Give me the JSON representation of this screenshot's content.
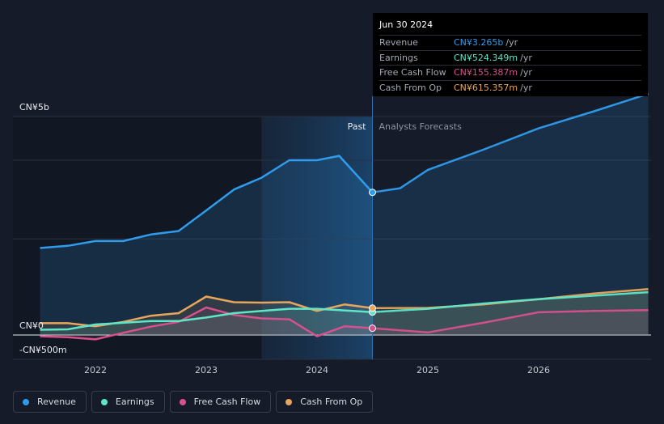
{
  "chart_data": {
    "type": "area",
    "ylabel_top": "CN¥5b",
    "ylabel_zero": "CN¥0",
    "ylabel_bottom": "-CN¥500m",
    "x_ticks": [
      "2022",
      "2023",
      "2024",
      "2025",
      "2026"
    ],
    "past_label": "Past",
    "forecast_label": "Analysts Forecasts",
    "series": [
      {
        "name": "Revenue",
        "color": "#2f9cee",
        "points": [
          [
            2021.5,
            1.99
          ],
          [
            2021.75,
            2.04
          ],
          [
            2022.0,
            2.15
          ],
          [
            2022.25,
            2.15
          ],
          [
            2022.5,
            2.3
          ],
          [
            2022.75,
            2.38
          ],
          [
            2023.0,
            2.85
          ],
          [
            2023.25,
            3.33
          ],
          [
            2023.5,
            3.6
          ],
          [
            2023.75,
            4.0
          ],
          [
            2024.0,
            4.0
          ],
          [
            2024.2,
            4.1
          ],
          [
            2024.5,
            3.265
          ]
        ],
        "forecast": [
          [
            2024.5,
            3.265
          ],
          [
            2024.75,
            3.36
          ],
          [
            2025.0,
            3.78
          ],
          [
            2025.5,
            4.24
          ],
          [
            2026.0,
            4.73
          ],
          [
            2026.5,
            5.12
          ],
          [
            2026.99,
            5.52
          ]
        ]
      },
      {
        "name": "Earnings",
        "color": "#5ee6c8",
        "points": [
          [
            2021.5,
            0.12
          ],
          [
            2021.75,
            0.13
          ],
          [
            2022.0,
            0.24
          ],
          [
            2022.25,
            0.28
          ],
          [
            2022.5,
            0.32
          ],
          [
            2022.75,
            0.32
          ],
          [
            2023.0,
            0.4
          ],
          [
            2023.25,
            0.5
          ],
          [
            2023.5,
            0.55
          ],
          [
            2023.75,
            0.6
          ],
          [
            2024.0,
            0.6
          ],
          [
            2024.5,
            0.524
          ]
        ],
        "forecast": [
          [
            2024.5,
            0.524
          ],
          [
            2025.0,
            0.6
          ],
          [
            2025.5,
            0.72
          ],
          [
            2026.0,
            0.82
          ],
          [
            2026.5,
            0.9
          ],
          [
            2026.99,
            0.98
          ]
        ]
      },
      {
        "name": "Free Cash Flow",
        "color": "#d8508e",
        "points": [
          [
            2021.5,
            -0.03
          ],
          [
            2021.75,
            -0.05
          ],
          [
            2022.0,
            -0.1
          ],
          [
            2022.25,
            0.05
          ],
          [
            2022.5,
            0.19
          ],
          [
            2022.75,
            0.3
          ],
          [
            2023.0,
            0.63
          ],
          [
            2023.25,
            0.46
          ],
          [
            2023.5,
            0.38
          ],
          [
            2023.75,
            0.36
          ],
          [
            2024.0,
            -0.03
          ],
          [
            2024.25,
            0.2
          ],
          [
            2024.5,
            0.155
          ]
        ],
        "forecast": [
          [
            2024.5,
            0.155
          ],
          [
            2025.0,
            0.06
          ],
          [
            2025.5,
            0.28
          ],
          [
            2026.0,
            0.52
          ],
          [
            2026.5,
            0.55
          ],
          [
            2026.99,
            0.57
          ]
        ]
      },
      {
        "name": "Cash From Op",
        "color": "#e8a55c",
        "points": [
          [
            2021.5,
            0.27
          ],
          [
            2021.75,
            0.27
          ],
          [
            2022.0,
            0.2
          ],
          [
            2022.25,
            0.3
          ],
          [
            2022.5,
            0.44
          ],
          [
            2022.75,
            0.5
          ],
          [
            2023.0,
            0.88
          ],
          [
            2023.25,
            0.75
          ],
          [
            2023.5,
            0.74
          ],
          [
            2023.75,
            0.75
          ],
          [
            2024.0,
            0.55
          ],
          [
            2024.25,
            0.7
          ],
          [
            2024.5,
            0.615
          ]
        ],
        "forecast": [
          [
            2024.5,
            0.615
          ],
          [
            2025.0,
            0.62
          ],
          [
            2025.5,
            0.7
          ],
          [
            2026.0,
            0.82
          ],
          [
            2026.5,
            0.95
          ],
          [
            2026.99,
            1.05
          ]
        ]
      }
    ]
  },
  "tooltip": {
    "date": "Jun 30 2024",
    "rows": [
      {
        "label": "Revenue",
        "value": "CN¥3.265b",
        "unit": "/yr",
        "color": "#2f9cee"
      },
      {
        "label": "Earnings",
        "value": "CN¥524.349m",
        "unit": "/yr",
        "color": "#5ee6c8"
      },
      {
        "label": "Free Cash Flow",
        "value": "CN¥155.387m",
        "unit": "/yr",
        "color": "#d8508e"
      },
      {
        "label": "Cash From Op",
        "value": "CN¥615.357m",
        "unit": "/yr",
        "color": "#e8a55c"
      }
    ]
  },
  "legend": [
    {
      "label": "Revenue",
      "color": "#2f9cee"
    },
    {
      "label": "Earnings",
      "color": "#5ee6c8"
    },
    {
      "label": "Free Cash Flow",
      "color": "#d8508e"
    },
    {
      "label": "Cash From Op",
      "color": "#e8a55c"
    }
  ]
}
